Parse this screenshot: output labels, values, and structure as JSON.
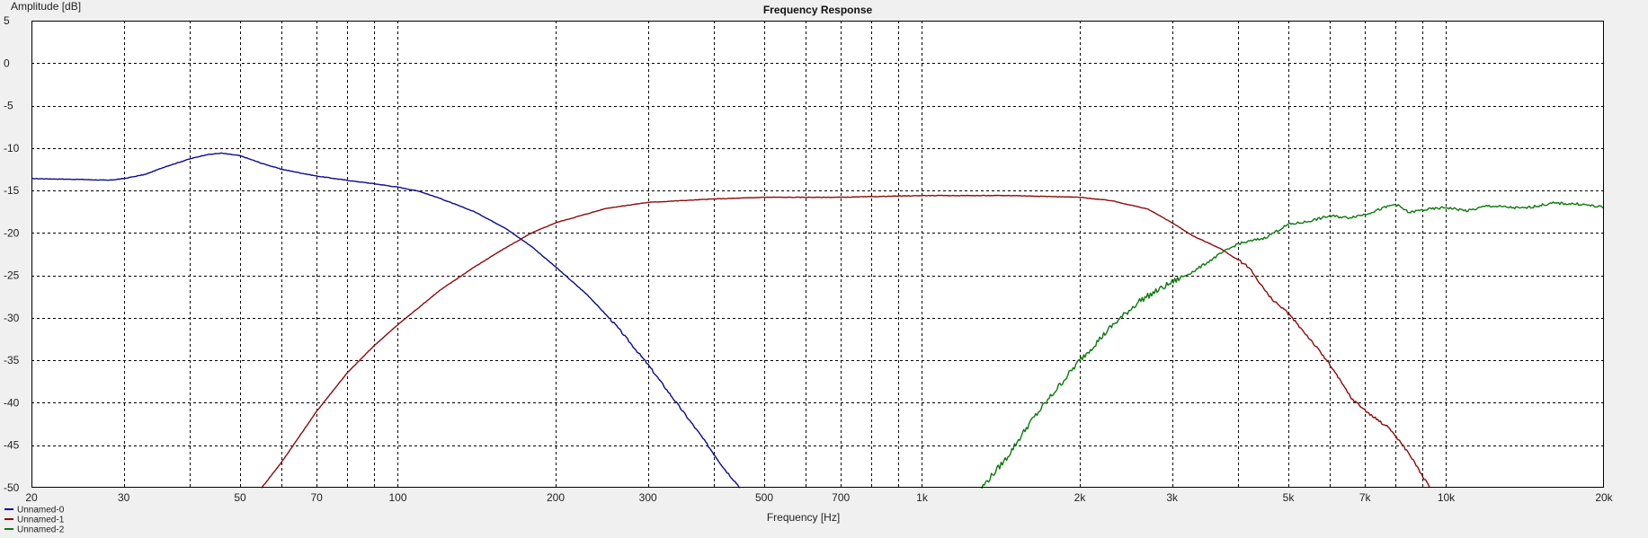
{
  "chart_data": {
    "type": "line",
    "title": "Frequency Response",
    "xlabel": "Frequency [Hz]",
    "ylabel": "Amplitude [dB]",
    "x_scale": "log",
    "xlim": [
      20,
      20000
    ],
    "ylim": [
      -50,
      5
    ],
    "x_ticks": [
      {
        "value": 20,
        "label": "20"
      },
      {
        "value": 30,
        "label": "30"
      },
      {
        "value": 50,
        "label": "50"
      },
      {
        "value": 70,
        "label": "70"
      },
      {
        "value": 100,
        "label": "100"
      },
      {
        "value": 200,
        "label": "200"
      },
      {
        "value": 300,
        "label": "300"
      },
      {
        "value": 500,
        "label": "500"
      },
      {
        "value": 700,
        "label": "700"
      },
      {
        "value": 1000,
        "label": "1k"
      },
      {
        "value": 2000,
        "label": "2k"
      },
      {
        "value": 3000,
        "label": "3k"
      },
      {
        "value": 5000,
        "label": "5k"
      },
      {
        "value": 7000,
        "label": "7k"
      },
      {
        "value": 10000,
        "label": "10k"
      },
      {
        "value": 20000,
        "label": "20k"
      }
    ],
    "x_minor_grid": [
      40,
      60,
      80,
      90,
      400,
      600,
      800,
      900,
      4000,
      6000,
      8000,
      9000
    ],
    "y_ticks": [
      5,
      0,
      -5,
      -10,
      -15,
      -20,
      -25,
      -30,
      -35,
      -40,
      -45,
      -50
    ],
    "grid": true,
    "legend_position": "bottom-left",
    "background_color": "#ffffff",
    "grid_color": "#000000",
    "series": [
      {
        "name": "Unnamed-0",
        "color": "#0a0a8c",
        "points": [
          [
            20,
            -13.6
          ],
          [
            25,
            -13.7
          ],
          [
            28,
            -13.8
          ],
          [
            30,
            -13.6
          ],
          [
            33,
            -13.1
          ],
          [
            36,
            -12.2
          ],
          [
            40,
            -11.3
          ],
          [
            43,
            -10.8
          ],
          [
            46,
            -10.6
          ],
          [
            50,
            -10.9
          ],
          [
            55,
            -11.8
          ],
          [
            60,
            -12.5
          ],
          [
            70,
            -13.3
          ],
          [
            80,
            -13.8
          ],
          [
            90,
            -14.2
          ],
          [
            100,
            -14.6
          ],
          [
            110,
            -15.1
          ],
          [
            120,
            -15.9
          ],
          [
            140,
            -17.5
          ],
          [
            160,
            -19.4
          ],
          [
            180,
            -21.6
          ],
          [
            200,
            -24.0
          ],
          [
            230,
            -27.3
          ],
          [
            260,
            -30.8
          ],
          [
            300,
            -35.5
          ],
          [
            340,
            -40.0
          ],
          [
            380,
            -44.0
          ],
          [
            420,
            -47.8
          ],
          [
            450,
            -50.0
          ]
        ]
      },
      {
        "name": "Unnamed-1",
        "color": "#8c0a0a",
        "points": [
          [
            55,
            -50.0
          ],
          [
            60,
            -47.0
          ],
          [
            70,
            -41.0
          ],
          [
            80,
            -36.5
          ],
          [
            90,
            -33.3
          ],
          [
            100,
            -30.8
          ],
          [
            120,
            -26.8
          ],
          [
            140,
            -24.0
          ],
          [
            160,
            -21.8
          ],
          [
            180,
            -20.0
          ],
          [
            200,
            -18.8
          ],
          [
            250,
            -17.1
          ],
          [
            300,
            -16.4
          ],
          [
            400,
            -16.0
          ],
          [
            500,
            -15.8
          ],
          [
            700,
            -15.8
          ],
          [
            1000,
            -15.6
          ],
          [
            1500,
            -15.6
          ],
          [
            2000,
            -15.8
          ],
          [
            2300,
            -16.2
          ],
          [
            2700,
            -17.2
          ],
          [
            3000,
            -18.8
          ],
          [
            3300,
            -20.4
          ],
          [
            3700,
            -21.8
          ],
          [
            4200,
            -24.0
          ],
          [
            4600,
            -27.5
          ],
          [
            5000,
            -29.5
          ],
          [
            5500,
            -32.5
          ],
          [
            6000,
            -35.5
          ],
          [
            6600,
            -39.5
          ],
          [
            7200,
            -41.5
          ],
          [
            7800,
            -43.0
          ],
          [
            8500,
            -46.0
          ],
          [
            9300,
            -50.0
          ]
        ]
      },
      {
        "name": "Unnamed-2",
        "color": "#0a7a0a",
        "points": [
          [
            1300,
            -50.0
          ],
          [
            1450,
            -46.5
          ],
          [
            1600,
            -42.5
          ],
          [
            1800,
            -38.5
          ],
          [
            2000,
            -35.0
          ],
          [
            2300,
            -31.0
          ],
          [
            2600,
            -28.0
          ],
          [
            3000,
            -25.8
          ],
          [
            3300,
            -24.5
          ],
          [
            3700,
            -22.5
          ],
          [
            4000,
            -21.3
          ],
          [
            4500,
            -20.6
          ],
          [
            5000,
            -19.0
          ],
          [
            5400,
            -18.7
          ],
          [
            6000,
            -18.0
          ],
          [
            6500,
            -18.2
          ],
          [
            7000,
            -17.8
          ],
          [
            8000,
            -16.6
          ],
          [
            8500,
            -17.6
          ],
          [
            9000,
            -17.3
          ],
          [
            10000,
            -17.0
          ],
          [
            11000,
            -17.4
          ],
          [
            12000,
            -16.8
          ],
          [
            14000,
            -17.1
          ],
          [
            16000,
            -16.5
          ],
          [
            18000,
            -16.6
          ],
          [
            20000,
            -17.0
          ]
        ]
      }
    ]
  }
}
